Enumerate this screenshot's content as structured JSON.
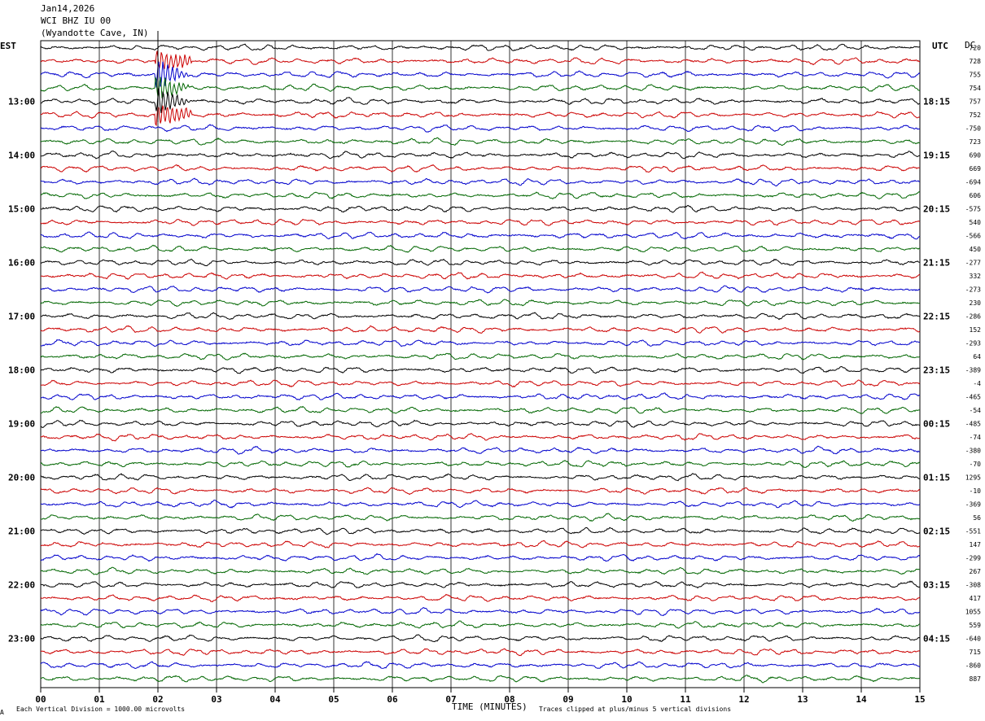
{
  "header": {
    "date": "Jan14,2026",
    "station": "WCI BHZ IU 00",
    "location": "(Wyandotte Cave, IN)"
  },
  "labels": {
    "left_zone": "EST",
    "right_zone": "UTC",
    "dc_label": "DC"
  },
  "footer": {
    "scale_note": "Each Vertical Division = 1000.00 microvolts",
    "clip_note": "Traces clipped at plus/minus 5 vertical divisions",
    "mark": "A"
  },
  "chart_data": {
    "type": "helicorder",
    "xlabel": "TIME (MINUTES)",
    "xlim": [
      0,
      15
    ],
    "x_ticks": [
      "00",
      "01",
      "02",
      "03",
      "04",
      "05",
      "06",
      "07",
      "08",
      "09",
      "10",
      "11",
      "12",
      "13",
      "14",
      "15"
    ],
    "trace_colors": [
      "#000000",
      "#cc0000",
      "#0000cc",
      "#006600"
    ],
    "trace_count": 48,
    "left_hour_labels": [
      "13:00",
      "14:00",
      "15:00",
      "16:00",
      "17:00",
      "18:00",
      "19:00",
      "20:00",
      "21:00",
      "22:00",
      "23:00"
    ],
    "right_hour_labels": [
      "18:15",
      "19:15",
      "20:15",
      "21:15",
      "22:15",
      "23:15",
      "00:15",
      "01:15",
      "02:15",
      "03:15",
      "04:15"
    ],
    "dc_offsets": [
      "720",
      "728",
      "755",
      "754",
      "757",
      "752",
      "-750",
      "723",
      "690",
      "669",
      "-694",
      "606",
      "-575",
      "540",
      "-566",
      "450",
      "-277",
      "332",
      "-273",
      "230",
      "-286",
      "152",
      "-293",
      "64",
      "-389",
      "-4",
      "-465",
      "-54",
      "-485",
      "-74",
      "-380",
      "-70",
      "1295",
      "-10",
      "-369",
      "56",
      "-551",
      "147",
      "-299",
      "267",
      "-308",
      "417",
      "1055",
      "559",
      "-640",
      "715",
      "-860",
      "887"
    ],
    "events": [
      {
        "trace": 1,
        "minute": 2.0,
        "amplitude": "clipped"
      },
      {
        "trace": 2,
        "minute": 2.0,
        "amplitude": "clipped"
      },
      {
        "trace": 3,
        "minute": 2.0,
        "amplitude": "clipped"
      },
      {
        "trace": 4,
        "minute": 2.0,
        "amplitude": "clipped"
      },
      {
        "trace": 5,
        "minute": 2.0,
        "amplitude": "clipped"
      }
    ]
  }
}
